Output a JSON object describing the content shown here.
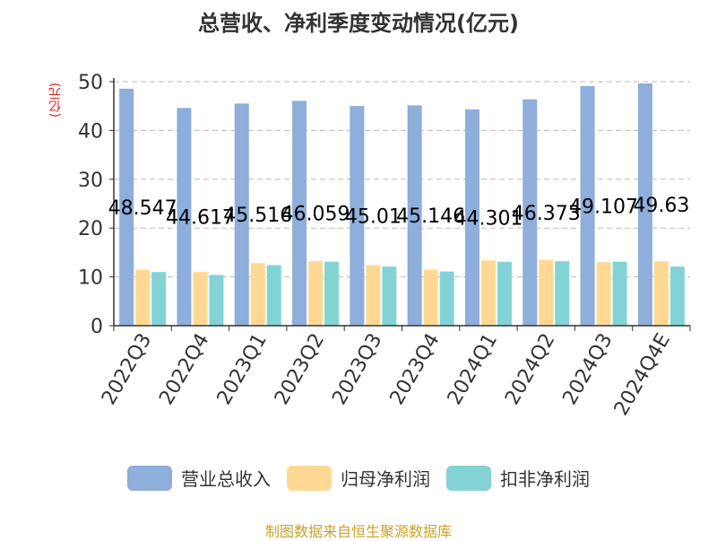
{
  "page": {
    "title": "总营收、净利季度变动情况(亿元)",
    "source": "制图数据来自恒生聚源数据库"
  },
  "colors": {
    "revenue": "#8eaedb",
    "net_profit": "#ffd993",
    "deducted_profit": "#83d3d5",
    "grid": "#bbbbbb",
    "axis": "#333333",
    "ylabel": "#e0201e"
  },
  "chart_data": {
    "type": "bar",
    "title": "总营收、净利季度变动情况(亿元)",
    "xlabel": "",
    "ylabel": "(亿元)",
    "ylim": [
      0,
      50
    ],
    "yticks": [
      0,
      10,
      20,
      30,
      40,
      50
    ],
    "grid": true,
    "legend_position": "bottom",
    "categories": [
      "2022Q3",
      "2022Q4",
      "2023Q1",
      "2023Q2",
      "2023Q3",
      "2023Q4",
      "2024Q1",
      "2024Q2",
      "2024Q3",
      "2024Q4E"
    ],
    "series": [
      {
        "name": "营业总收入",
        "values": [
          48.547,
          44.617,
          45.516,
          46.059,
          45.01,
          45.146,
          44.301,
          46.373,
          49.107,
          49.63
        ],
        "labels": [
          "48.547",
          "44.617",
          "45.516",
          "46.059",
          "45.01",
          "45.146",
          "44.301",
          "46.373",
          "49.107",
          "49.63"
        ]
      },
      {
        "name": "归母净利润",
        "values": [
          11.5,
          11.0,
          12.8,
          13.2,
          12.4,
          11.5,
          13.4,
          13.5,
          13.0,
          13.2
        ]
      },
      {
        "name": "扣非净利润",
        "values": [
          11.0,
          10.4,
          12.4,
          13.1,
          12.1,
          11.1,
          13.1,
          13.2,
          13.1,
          12.1
        ]
      }
    ]
  }
}
